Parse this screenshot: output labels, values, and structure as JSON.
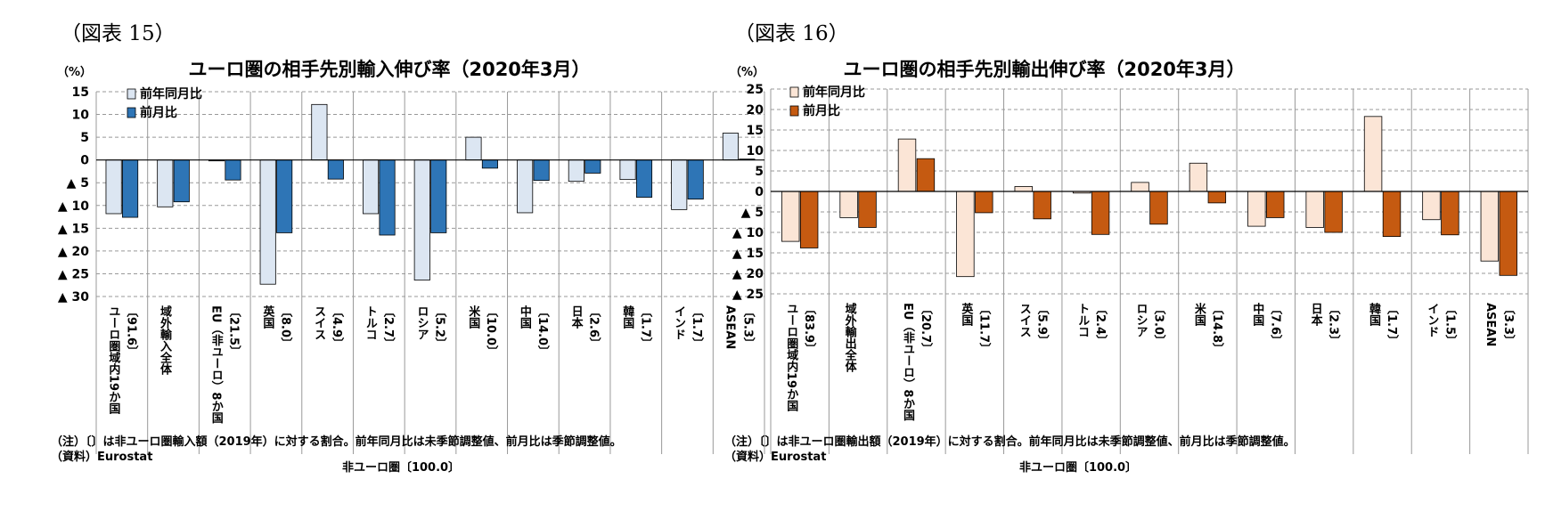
{
  "charts": [
    {
      "fig_label": "（図表 15）",
      "title": "ユーロ圏の相手先別輸入伸び率（2020年3月）",
      "unit": "（%）",
      "group_label": "非ユーロ圏〔100.0〕",
      "note": "（注）〔〕は非ユーロ圏輸入額（2019年）に対する割合。前年同月比は未季節調整値、前月比は季節調整値。",
      "source": "（資料）Eurostat",
      "colors": {
        "yoy": "#dce6f2",
        "mom": "#2e75b6",
        "grid": "#999999",
        "axis": "#000000"
      },
      "chart_data": {
        "type": "bar",
        "ylim": [
          -30,
          15
        ],
        "yticks": [
          {
            "value": 15,
            "label": "15"
          },
          {
            "value": 10,
            "label": "10"
          },
          {
            "value": 5,
            "label": "5"
          },
          {
            "value": 0,
            "label": "0"
          },
          {
            "value": -5,
            "label": "▲ 5"
          },
          {
            "value": -10,
            "label": "▲ 10"
          },
          {
            "value": -15,
            "label": "▲ 15"
          },
          {
            "value": -20,
            "label": "▲ 20"
          },
          {
            "value": -25,
            "label": "▲ 25"
          },
          {
            "value": -30,
            "label": "▲ 30"
          }
        ],
        "categories": [
          {
            "name": "ユーロ圏域内19か国",
            "share": "〔91.6〕"
          },
          {
            "name": "域外輸入全体",
            "share": ""
          },
          {
            "name": "EU（非ユーロ）8か国",
            "share": "〔21.5〕"
          },
          {
            "name": "英国",
            "share": "〔8.0〕"
          },
          {
            "name": "スイス",
            "share": "〔4.9〕"
          },
          {
            "name": "トルコ",
            "share": "〔2.7〕"
          },
          {
            "name": "ロシア",
            "share": "〔5.2〕"
          },
          {
            "name": "米国",
            "share": "〔10.0〕"
          },
          {
            "name": "中国",
            "share": "〔14.0〕"
          },
          {
            "name": "日本",
            "share": "〔2.6〕"
          },
          {
            "name": "韓国",
            "share": "〔1.7〕"
          },
          {
            "name": "インド",
            "share": "〔1.7〕"
          },
          {
            "name": "ASEAN",
            "share": "〔5.3〕"
          }
        ],
        "series": [
          {
            "name": "前年同月比",
            "values": [
              -11.8,
              -10.3,
              -0.2,
              -27.3,
              12.2,
              -11.8,
              -26.4,
              5.0,
              -11.6,
              -4.7,
              -4.3,
              -10.9,
              5.9
            ]
          },
          {
            "name": "前月比",
            "values": [
              -12.6,
              -9.2,
              -4.4,
              -16.0,
              -4.2,
              -16.5,
              -16.0,
              -1.8,
              -4.5,
              -2.9,
              -8.2,
              -8.6,
              0.2
            ]
          }
        ]
      }
    },
    {
      "fig_label": "（図表 16）",
      "title": "ユーロ圏の相手先別輸出伸び率（2020年3月）",
      "unit": "（%）",
      "group_label": "非ユーロ圏〔100.0〕",
      "note": "（注）〔〕は非ユーロ圏輸出額（2019年）に対する割合。前年同月比は未季節調整値、前月比は季節調整値。",
      "source": "（資料）Eurostat",
      "colors": {
        "yoy": "#fbe5d6",
        "mom": "#c55a11",
        "grid": "#999999",
        "axis": "#000000"
      },
      "chart_data": {
        "type": "bar",
        "ylim": [
          -25,
          25
        ],
        "yticks": [
          {
            "value": 25,
            "label": "25"
          },
          {
            "value": 20,
            "label": "20"
          },
          {
            "value": 15,
            "label": "15"
          },
          {
            "value": 10,
            "label": "10"
          },
          {
            "value": 5,
            "label": "5"
          },
          {
            "value": 0,
            "label": "0"
          },
          {
            "value": -5,
            "label": "▲ 5"
          },
          {
            "value": -10,
            "label": "▲ 10"
          },
          {
            "value": -15,
            "label": "▲ 15"
          },
          {
            "value": -20,
            "label": "▲ 20"
          },
          {
            "value": -25,
            "label": "▲ 25"
          }
        ],
        "categories": [
          {
            "name": "ユーロ圏域内19か国",
            "share": "〔83.9〕"
          },
          {
            "name": "域外輸出全体",
            "share": ""
          },
          {
            "name": "EU（非ユーロ）8か国",
            "share": "〔20.7〕"
          },
          {
            "name": "英国",
            "share": "〔11.7〕"
          },
          {
            "name": "スイス",
            "share": "〔5.9〕"
          },
          {
            "name": "トルコ",
            "share": "〔2.4〕"
          },
          {
            "name": "ロシア",
            "share": "〔3.0〕"
          },
          {
            "name": "米国",
            "share": "〔14.8〕"
          },
          {
            "name": "中国",
            "share": "〔7.6〕"
          },
          {
            "name": "日本",
            "share": "〔2.3〕"
          },
          {
            "name": "韓国",
            "share": "〔1.7〕"
          },
          {
            "name": "インド",
            "share": "〔1.5〕"
          },
          {
            "name": "ASEAN",
            "share": "〔3.3〕"
          }
        ],
        "series": [
          {
            "name": "前年同月比",
            "values": [
              -12.2,
              -6.4,
              12.8,
              -20.8,
              1.2,
              -0.4,
              2.2,
              6.9,
              -8.5,
              -8.8,
              18.3,
              -6.9,
              -17.0
            ]
          },
          {
            "name": "前月比",
            "values": [
              -13.8,
              -8.8,
              8.0,
              -5.2,
              -6.7,
              -10.5,
              -8.0,
              -2.8,
              -6.4,
              -10.0,
              -11.0,
              -10.6,
              -20.5
            ]
          }
        ]
      }
    }
  ]
}
